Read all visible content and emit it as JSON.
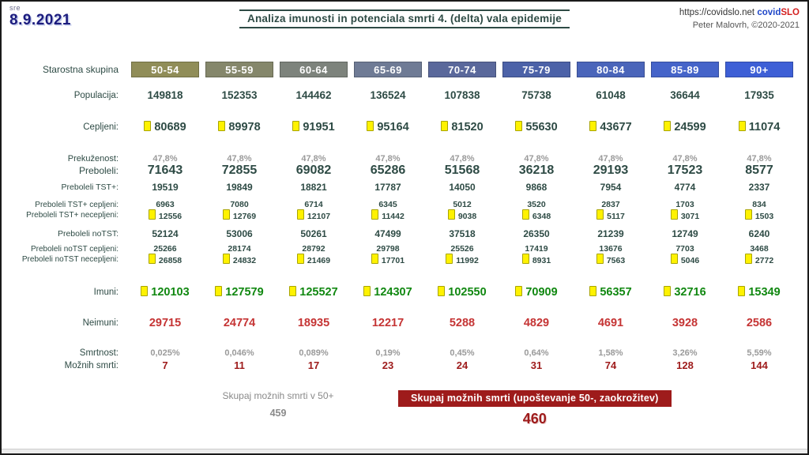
{
  "header": {
    "day_abbr": "sre",
    "date": "8.9.2021",
    "title": "Analiza imunosti in potenciala smrti 4. (delta) vala epidemije",
    "site_url": "https://covidslo.net",
    "brand_covid": "covid",
    "brand_slo": "SLO",
    "author": "Peter Malovrh, ©2020-2021"
  },
  "colors": {
    "accent_teal": "#2e4b45",
    "immune_green": "#118811",
    "nonimmune_red": "#c53434",
    "deaths_dark_red": "#9e1b1b",
    "icon_yellow": "#fff200",
    "muted_gray": "#9a9a9a"
  },
  "table": {
    "group_label": "Starostna skupina",
    "age_groups": [
      {
        "label": "50-54",
        "color": "#908d58"
      },
      {
        "label": "55-59",
        "color": "#85876b"
      },
      {
        "label": "60-64",
        "color": "#7d837c"
      },
      {
        "label": "65-69",
        "color": "#6f7b95"
      },
      {
        "label": "70-74",
        "color": "#5a689b"
      },
      {
        "label": "75-79",
        "color": "#4c62a8"
      },
      {
        "label": "80-84",
        "color": "#4a65ba"
      },
      {
        "label": "85-89",
        "color": "#4564c9"
      },
      {
        "label": "90+",
        "color": "#3d5fd6"
      }
    ],
    "rows": [
      {
        "id": "populacija",
        "label": "Populacija:",
        "icon": false,
        "values": [
          "149818",
          "152353",
          "144462",
          "136524",
          "107838",
          "75738",
          "61048",
          "36644",
          "17935"
        ]
      },
      {
        "id": "cepljeni",
        "label": "Cepljeni:",
        "icon": true,
        "values": [
          "80689",
          "89978",
          "91951",
          "95164",
          "81520",
          "55630",
          "43677",
          "24599",
          "11074"
        ]
      },
      {
        "id": "prekuzenost",
        "label": "Prekuženost:",
        "icon": false,
        "values": [
          "47,8%",
          "47,8%",
          "47,8%",
          "47,8%",
          "47,8%",
          "47,8%",
          "47,8%",
          "47,8%",
          "47,8%"
        ]
      },
      {
        "id": "preboleli",
        "label": "Preboleli:",
        "icon": false,
        "values": [
          "71643",
          "72855",
          "69082",
          "65286",
          "51568",
          "36218",
          "29193",
          "17523",
          "8577"
        ]
      },
      {
        "id": "preboleli-tst",
        "label": "Preboleli TST+:",
        "icon": false,
        "values": [
          "19519",
          "19849",
          "18821",
          "17787",
          "14050",
          "9868",
          "7954",
          "4774",
          "2337"
        ]
      },
      {
        "id": "preboleli-tst-cepljeni",
        "label": "Preboleli TST+ cepljeni:",
        "icon": false,
        "values": [
          "6963",
          "7080",
          "6714",
          "6345",
          "5012",
          "3520",
          "2837",
          "1703",
          "834"
        ]
      },
      {
        "id": "preboleli-tst-necepljeni",
        "label": "Preboleli TST+ necepljeni:",
        "icon": true,
        "values": [
          "12556",
          "12769",
          "12107",
          "11442",
          "9038",
          "6348",
          "5117",
          "3071",
          "1503"
        ]
      },
      {
        "id": "preboleli-notst",
        "label": "Preboleli noTST:",
        "icon": false,
        "values": [
          "52124",
          "53006",
          "50261",
          "47499",
          "37518",
          "26350",
          "21239",
          "12749",
          "6240"
        ]
      },
      {
        "id": "preboleli-notst-cepljeni",
        "label": "Preboleli noTST cepljeni:",
        "icon": false,
        "values": [
          "25266",
          "28174",
          "28792",
          "29798",
          "25526",
          "17419",
          "13676",
          "7703",
          "3468"
        ]
      },
      {
        "id": "preboleli-notst-necepljeni",
        "label": "Preboleli noTST necepljeni:",
        "icon": true,
        "values": [
          "26858",
          "24832",
          "21469",
          "17701",
          "11992",
          "8931",
          "7563",
          "5046",
          "2772"
        ]
      },
      {
        "id": "imuni",
        "label": "Imuni:",
        "icon": true,
        "values": [
          "120103",
          "127579",
          "125527",
          "124307",
          "102550",
          "70909",
          "56357",
          "32716",
          "15349"
        ]
      },
      {
        "id": "neimuni",
        "label": "Neimuni:",
        "icon": false,
        "values": [
          "29715",
          "24774",
          "18935",
          "12217",
          "5288",
          "4829",
          "4691",
          "3928",
          "2586"
        ]
      },
      {
        "id": "smrtnost",
        "label": "Smrtnost:",
        "icon": false,
        "values": [
          "0,025%",
          "0,046%",
          "0,089%",
          "0,19%",
          "0,45%",
          "0,64%",
          "1,58%",
          "3,26%",
          "5,59%"
        ]
      },
      {
        "id": "moznih-smrti",
        "label": "Možnih smrti:",
        "icon": false,
        "values": [
          "7",
          "11",
          "17",
          "23",
          "24",
          "31",
          "74",
          "128",
          "144"
        ]
      }
    ]
  },
  "footer": {
    "sum_50plus_label": "Skupaj možnih smrti v 50+",
    "sum_50plus_value": "459",
    "banner_label": "Skupaj možnih smrti (upoštevanje 50-, zaokrožitev)",
    "banner_value": "460"
  }
}
